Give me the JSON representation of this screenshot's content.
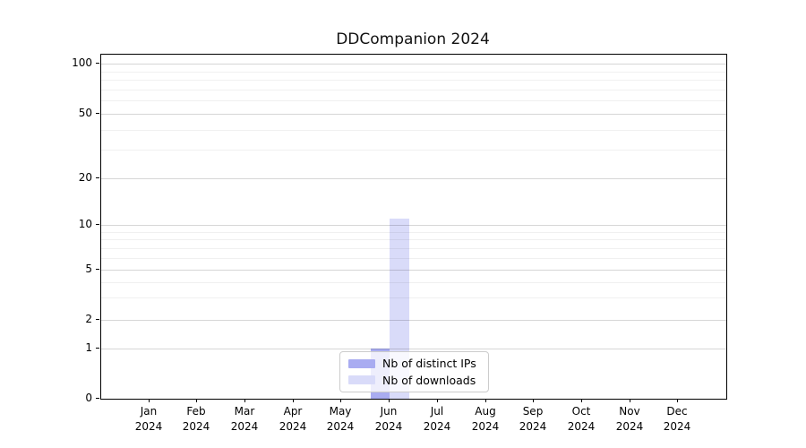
{
  "chart_data": {
    "type": "bar",
    "title": "DDCompanion 2024",
    "x_year": "2024",
    "categories": [
      "Jan",
      "Feb",
      "Mar",
      "Apr",
      "May",
      "Jun",
      "Jul",
      "Aug",
      "Sep",
      "Oct",
      "Nov",
      "Dec"
    ],
    "series": [
      {
        "name": "Nb of distinct IPs",
        "color": "#a9acf1",
        "values": [
          0,
          0,
          0,
          0,
          0,
          1,
          0,
          0,
          0,
          0,
          0,
          0
        ]
      },
      {
        "name": "Nb of downloads",
        "color": "#d9dbf9",
        "values": [
          0,
          0,
          0,
          0,
          0,
          11,
          0,
          0,
          0,
          0,
          0,
          0
        ]
      }
    ],
    "y_ticks": [
      0,
      1,
      2,
      5,
      10,
      20,
      50,
      100
    ],
    "y_minor_ticks": [
      3,
      4,
      6,
      7,
      8,
      9,
      30,
      40,
      60,
      70,
      80,
      90
    ],
    "y_scale": "symlog",
    "ylim": [
      0,
      114
    ],
    "xlabel": "",
    "ylabel": "",
    "grid": "horizontal major+minor",
    "legend_position": "lower center",
    "colors": {
      "axis": "#000000",
      "grid_major": "#d6d6d6",
      "grid_minor": "#f0f0f0",
      "background": "#ffffff"
    }
  }
}
